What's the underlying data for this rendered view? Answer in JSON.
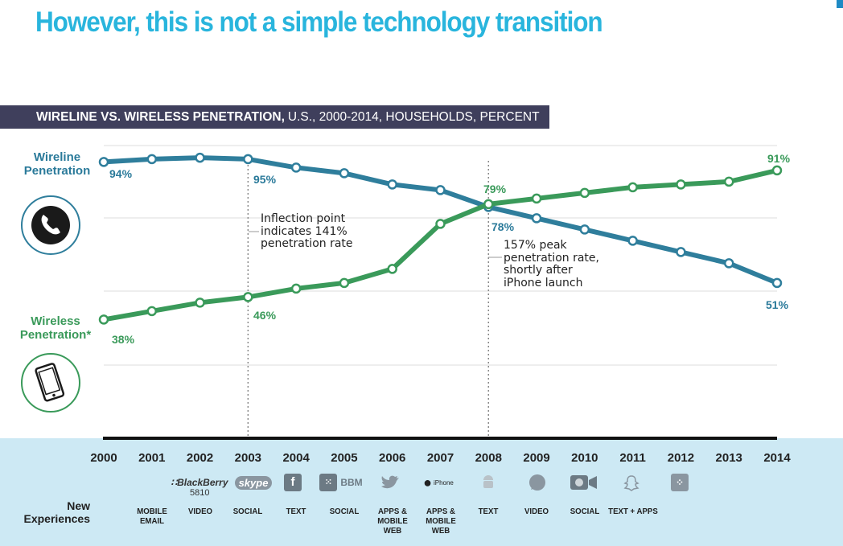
{
  "title": "However, this is not a simple technology transition",
  "chart_data": {
    "type": "line",
    "title_bold": "WIRELINE VS. WIRELESS PENETRATION,",
    "title_rest": "U.S., 2000-2014, HOUSEHOLDS, PERCENT",
    "x": [
      2000,
      2001,
      2002,
      2003,
      2004,
      2005,
      2006,
      2007,
      2008,
      2009,
      2010,
      2011,
      2012,
      2013,
      2014
    ],
    "series": [
      {
        "name": "Wireline Penetration",
        "color": "#2f7e9c",
        "values": [
          94,
          95,
          95.5,
          95,
          92,
          90,
          86,
          84,
          78,
          74,
          70,
          66,
          62,
          58,
          51
        ]
      },
      {
        "name": "Wireless Penetration*",
        "color": "#3a9a5a",
        "values": [
          38,
          41,
          44,
          46,
          49,
          51,
          56,
          72,
          79,
          81,
          83,
          85,
          86,
          87,
          91
        ]
      }
    ],
    "ylim": [
      35,
      100
    ],
    "point_labels": {
      "wire_2000": "94%",
      "wire_2003": "95%",
      "wire_2008": "78%",
      "wire_2014": "51%",
      "wless_2000": "38%",
      "wless_2003": "46%",
      "wless_2008": "79%",
      "wless_2014": "91%"
    },
    "annotations": {
      "inflection": "Inflection point\nindicates 141%\npenetration rate",
      "peak": "157% peak\npenetration rate,\nshortly after\niPhone launch"
    },
    "guide_years": [
      2003,
      2008
    ]
  },
  "labels": {
    "wireline": "Wireline\nPenetration",
    "wireless": "Wireless\nPenetration*"
  },
  "icons": {
    "wireline": "phone-handset-icon",
    "wireless": "smartphone-icon"
  },
  "new_experiences": {
    "label": "New\nExperiences",
    "items": [
      {
        "year": 2001,
        "brand": "BlackBerry",
        "brand_sub": "5810",
        "text": "MOBILE\nEMAIL"
      },
      {
        "year": 2002,
        "brand": "skype",
        "text": "VIDEO"
      },
      {
        "year": 2003,
        "text": "SOCIAL"
      },
      {
        "year": 2004,
        "brand": "BBM",
        "text": "TEXT"
      },
      {
        "year": 2005,
        "text": "SOCIAL"
      },
      {
        "year": 2006,
        "brand": "iPhone",
        "text": "APPS &\nMOBILE\nWEB"
      },
      {
        "year": 2007,
        "text": "APPS &\nMOBILE\nWEB"
      },
      {
        "year": 2008,
        "text": "TEXT"
      },
      {
        "year": 2009,
        "text": "VIDEO"
      },
      {
        "year": 2010,
        "text": "SOCIAL"
      },
      {
        "year": 2011,
        "text": "TEXT + APPS"
      }
    ]
  }
}
